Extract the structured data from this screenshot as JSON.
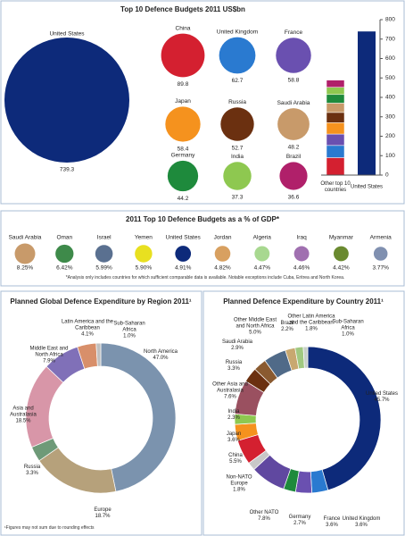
{
  "chart_data": [
    {
      "type": "bubble",
      "title": "Top 10 Defence Budgets 2011 US$bn",
      "categories": [
        "United States",
        "China",
        "United Kingdom",
        "France",
        "Japan",
        "Russia",
        "Saudi Arabia",
        "Germany",
        "India",
        "Brazil"
      ],
      "values": [
        739.3,
        89.8,
        62.7,
        58.8,
        58.4,
        52.7,
        48.2,
        44.2,
        37.3,
        36.6
      ],
      "colors": [
        "#0d2a7a",
        "#d42030",
        "#2a7ad0",
        "#6a50b0",
        "#f5921e",
        "#6b3010",
        "#c89a6a",
        "#1e8a3c",
        "#8ec850",
        "#b0206a"
      ],
      "bar_categories": [
        "Other top 10 countries",
        "United States"
      ],
      "ylim": [
        0,
        800
      ],
      "yticks": [
        0,
        100,
        200,
        300,
        400,
        500,
        600,
        700,
        800
      ]
    },
    {
      "type": "circles",
      "title": "2011 Top 10 Defence Budgets as a % of GDP*",
      "categories": [
        "Saudi Arabia",
        "Oman",
        "Israel",
        "Yemen",
        "United States",
        "Jordan",
        "Algeria",
        "Iraq",
        "Myanmar",
        "Armenia"
      ],
      "values": [
        8.25,
        6.42,
        5.99,
        5.9,
        4.91,
        4.82,
        4.47,
        4.46,
        4.42,
        3.77
      ],
      "value_labels": [
        "8.25%",
        "6.42%",
        "5.99%",
        "5.90%",
        "4.91%",
        "4.82%",
        "4.47%",
        "4.46%",
        "4.42%",
        "3.77%"
      ],
      "colors": [
        "#c89a6a",
        "#3e8a4a",
        "#5a7090",
        "#e8e020",
        "#0d2a7a",
        "#d8a060",
        "#a8d890",
        "#a070b0",
        "#6a8a30",
        "#8090b0"
      ],
      "note": "*Analysis only includes countries for which sufficient comparable data is available. Notable exceptions include Cuba, Eritrea and North Korea."
    },
    {
      "type": "donut",
      "title": "Planned Global Defence Expenditure by Region 2011¹",
      "categories": [
        "North America",
        "Europe",
        "Russia",
        "Asia and Australasia",
        "Middle East and North Africa",
        "Latin America and the Caribbean",
        "Sub-Saharan Africa"
      ],
      "values": [
        47.0,
        18.7,
        3.3,
        18.5,
        7.9,
        4.1,
        1.0
      ],
      "value_labels": [
        "47.0%",
        "18.7%",
        "3.3%",
        "18.5%",
        "7.9%",
        "4.1%",
        "1.0%"
      ],
      "colors": [
        "#7b93ae",
        "#b6a17b",
        "#6e9a78",
        "#d896a8",
        "#8070b8",
        "#d88f6a",
        "#c0c0c0"
      ],
      "note": "¹Figures may not sum due to rounding effects"
    },
    {
      "type": "donut",
      "title": "Planned Defence Expenditure by Country 2011¹",
      "categories": [
        "United States",
        "United Kingdom",
        "France",
        "Germany",
        "Other NATO",
        "Non-NATO Europe",
        "China",
        "Japan",
        "India",
        "Other Asia and Australasia",
        "Russia",
        "Saudi Arabia",
        "Other Middle East and North Africa",
        "Brazil",
        "Other Latin America and the Caribbean",
        "Sub-Saharan Africa"
      ],
      "values": [
        45.7,
        3.6,
        3.6,
        2.7,
        7.8,
        1.8,
        5.5,
        3.6,
        2.3,
        7.6,
        3.3,
        2.9,
        5.0,
        2.2,
        1.8,
        1.0
      ],
      "value_labels": [
        "45.7%",
        "3.6%",
        "3.6%",
        "2.7%",
        "7.8%",
        "1.8%",
        "5.5%",
        "3.6%",
        "2.3%",
        "7.6%",
        "3.3%",
        "2.9%",
        "5.0%",
        "2.2%",
        "1.8%",
        "1.0%"
      ],
      "colors": [
        "#0d2a7a",
        "#2a7ad0",
        "#6a50b0",
        "#1e8a3c",
        "#6048a0",
        "#c8c8c8",
        "#d42030",
        "#f5921e",
        "#8ec850",
        "#9a5060",
        "#6b3010",
        "#8a5a30",
        "#506a88",
        "#c8a870",
        "#a0c880",
        "#c8d0c8"
      ]
    }
  ]
}
